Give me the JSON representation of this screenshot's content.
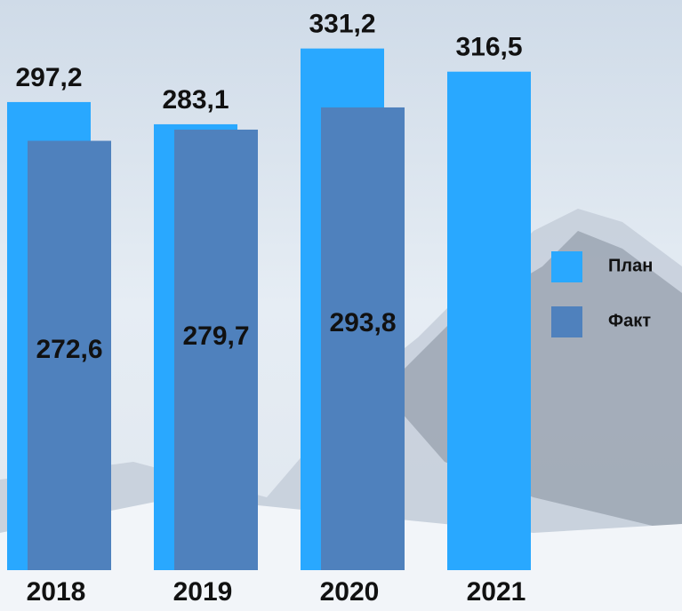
{
  "chart_data": {
    "type": "bar",
    "categories": [
      "2018",
      "2019",
      "2020",
      "2021"
    ],
    "series": [
      {
        "name": "План",
        "color": "#29a8ff",
        "values": [
          297.2,
          283.1,
          331.2,
          316.5
        ],
        "value_labels": [
          "297,2",
          "283,1",
          "331,2",
          "316,5"
        ]
      },
      {
        "name": "Факт",
        "color": "#4f81bd",
        "values": [
          272.6,
          279.7,
          293.8,
          null
        ],
        "value_labels": [
          "272,6",
          "279,7",
          "293,8",
          null
        ]
      }
    ],
    "ylim": [
      0,
      362
    ]
  }
}
